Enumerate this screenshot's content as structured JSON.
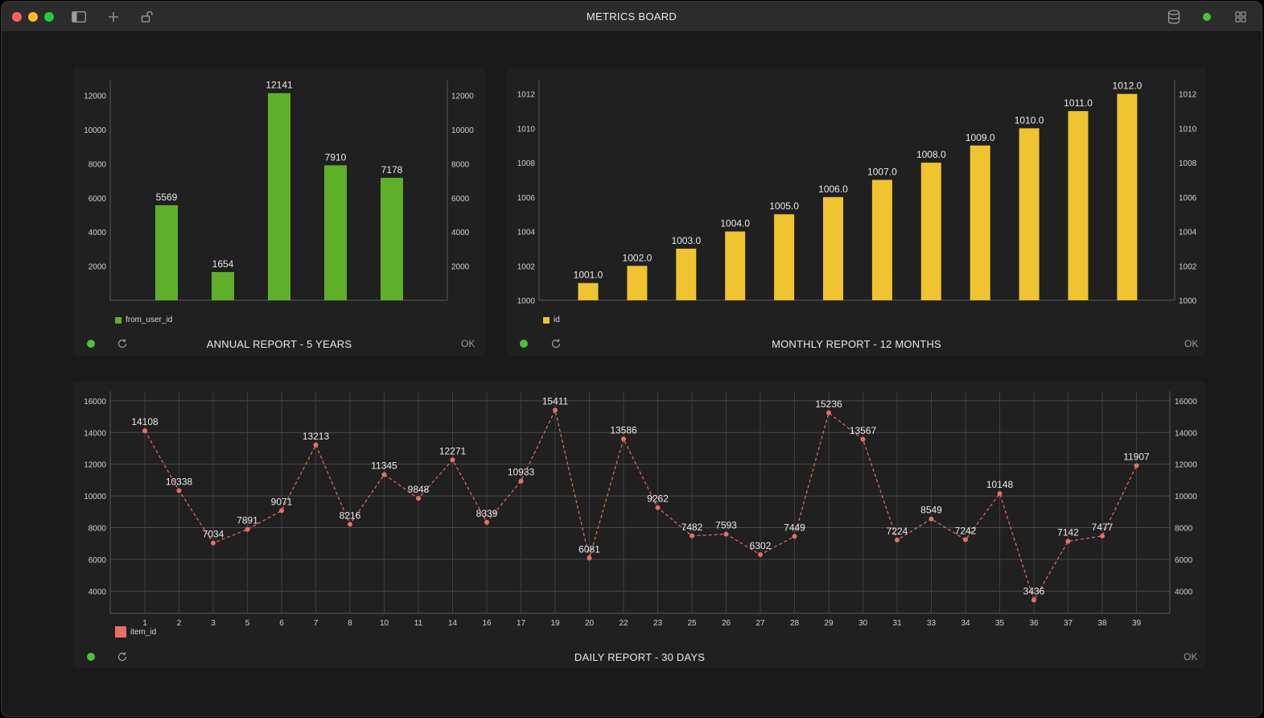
{
  "window": {
    "title": "METRICS BOARD"
  },
  "colors": {
    "annual": "#5eb02a",
    "monthly": "#f0c330",
    "daily": "#e96f63",
    "status_ok": "#4cc13a"
  },
  "icons": [
    "sidebar-toggle-icon",
    "plus-icon",
    "unlock-icon",
    "database-icon",
    "status-dot-icon",
    "grid-icon",
    "refresh-icon"
  ],
  "panels": {
    "annual": {
      "title": "ANNUAL REPORT - 5 YEARS",
      "status": "OK",
      "legend": "from_user_id"
    },
    "monthly": {
      "title": "MONTHLY REPORT - 12 MONTHS",
      "status": "OK",
      "legend": "id"
    },
    "daily": {
      "title": "DAILY REPORT - 30 DAYS",
      "status": "OK",
      "legend": "item_id"
    }
  },
  "chart_data": [
    {
      "type": "bar",
      "series": [
        {
          "name": "from_user_id",
          "values": [
            5569,
            1654,
            12141,
            7910,
            7178
          ]
        }
      ],
      "data_labels": [
        "5569",
        "1654",
        "12141",
        "7910",
        "7178"
      ],
      "ylim": [
        0,
        12600
      ],
      "yticks": [
        2000,
        4000,
        6000,
        8000,
        10000,
        12000
      ],
      "yticks_right": [
        2000,
        4000,
        6000,
        8000,
        10000,
        12000
      ],
      "grid": false,
      "legend": "bottom-left",
      "title": "ANNUAL REPORT - 5 YEARS"
    },
    {
      "type": "bar",
      "series": [
        {
          "name": "id",
          "values": [
            1001.0,
            1002.0,
            1003.0,
            1004.0,
            1005.0,
            1006.0,
            1007.0,
            1008.0,
            1009.0,
            1010.0,
            1011.0,
            1012.0
          ]
        }
      ],
      "data_labels": [
        "1001.0",
        "1002.0",
        "1003.0",
        "1004.0",
        "1005.0",
        "1006.0",
        "1007.0",
        "1008.0",
        "1009.0",
        "1010.0",
        "1011.0",
        "1012.0"
      ],
      "ylim": [
        1000,
        1012.5
      ],
      "yticks": [
        1000,
        1002,
        1004,
        1006,
        1008,
        1010,
        1012
      ],
      "yticks_right": [
        1000,
        1002,
        1004,
        1006,
        1008,
        1010,
        1012
      ],
      "grid": false,
      "legend": "bottom-left",
      "title": "MONTHLY REPORT - 12 MONTHS"
    },
    {
      "type": "line",
      "categories": [
        "1",
        "2",
        "3",
        "5",
        "6",
        "7",
        "8",
        "10",
        "11",
        "14",
        "16",
        "17",
        "19",
        "20",
        "22",
        "23",
        "25",
        "26",
        "27",
        "28",
        "29",
        "30",
        "31",
        "33",
        "34",
        "35",
        "36",
        "37",
        "38",
        "39"
      ],
      "series": [
        {
          "name": "item_id",
          "values": [
            14108,
            10338,
            7034,
            7891,
            9071,
            13213,
            8216,
            11345,
            9848,
            12271,
            8339,
            10933,
            15411,
            6081,
            13586,
            9262,
            7482,
            7593,
            6302,
            7449,
            15236,
            13567,
            7224,
            8549,
            7242,
            10148,
            3436,
            7142,
            7477,
            11907
          ]
        }
      ],
      "ylim": [
        2600,
        16600
      ],
      "yticks": [
        4000,
        6000,
        8000,
        10000,
        12000,
        14000,
        16000
      ],
      "yticks_right": [
        4000,
        6000,
        8000,
        10000,
        12000,
        14000,
        16000
      ],
      "grid": true,
      "line_style": "dashed",
      "legend": "bottom-left",
      "title": "DAILY REPORT - 30 DAYS"
    }
  ]
}
